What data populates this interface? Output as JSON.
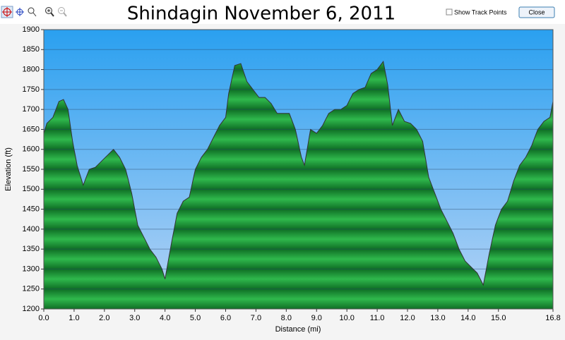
{
  "ui": {
    "show_track_points": "Show Track Points",
    "close": "Close"
  },
  "chart_data": {
    "type": "area",
    "title": "Shindagin November 6, 2011",
    "x_label": "Distance (mi)",
    "y_label": "Elevation (ft)",
    "x": [
      0.0,
      0.1,
      0.3,
      0.5,
      0.65,
      0.8,
      0.95,
      1.1,
      1.3,
      1.5,
      1.7,
      1.9,
      2.1,
      2.3,
      2.5,
      2.7,
      2.9,
      3.1,
      3.3,
      3.5,
      3.7,
      3.9,
      4.0,
      4.2,
      4.4,
      4.6,
      4.8,
      5.0,
      5.2,
      5.4,
      5.6,
      5.8,
      6.0,
      6.1,
      6.3,
      6.5,
      6.7,
      6.9,
      7.1,
      7.3,
      7.5,
      7.7,
      7.9,
      8.1,
      8.3,
      8.5,
      8.6,
      8.8,
      9.0,
      9.2,
      9.4,
      9.6,
      9.8,
      10.0,
      10.2,
      10.4,
      10.6,
      10.8,
      11.0,
      11.2,
      11.35,
      11.5,
      11.7,
      11.9,
      12.1,
      12.3,
      12.5,
      12.7,
      12.9,
      13.1,
      13.3,
      13.5,
      13.7,
      13.9,
      14.1,
      14.3,
      14.5,
      14.7,
      14.9,
      15.1,
      15.3,
      15.5,
      15.7,
      15.9,
      16.1,
      16.3,
      16.5,
      16.7,
      16.8
    ],
    "values": [
      1640,
      1665,
      1680,
      1720,
      1725,
      1700,
      1620,
      1560,
      1510,
      1550,
      1555,
      1570,
      1585,
      1600,
      1580,
      1550,
      1490,
      1410,
      1380,
      1350,
      1330,
      1300,
      1275,
      1360,
      1440,
      1470,
      1480,
      1550,
      1580,
      1600,
      1630,
      1660,
      1680,
      1740,
      1810,
      1815,
      1770,
      1750,
      1730,
      1730,
      1715,
      1690,
      1690,
      1690,
      1650,
      1580,
      1560,
      1650,
      1640,
      1660,
      1690,
      1700,
      1700,
      1710,
      1740,
      1750,
      1755,
      1790,
      1800,
      1820,
      1760,
      1660,
      1700,
      1670,
      1665,
      1650,
      1620,
      1530,
      1490,
      1450,
      1420,
      1390,
      1350,
      1320,
      1305,
      1290,
      1260,
      1340,
      1410,
      1450,
      1470,
      1520,
      1560,
      1580,
      1610,
      1650,
      1670,
      1680,
      1720
    ],
    "xlim": [
      0,
      16.8
    ],
    "xticks": [
      {
        "value": 0,
        "label": "0.0"
      },
      {
        "value": 1,
        "label": "1.0"
      },
      {
        "value": 2,
        "label": "2.0"
      },
      {
        "value": 3,
        "label": "3.0"
      },
      {
        "value": 4,
        "label": "4.0"
      },
      {
        "value": 5,
        "label": "5.0"
      },
      {
        "value": 6,
        "label": "6.0"
      },
      {
        "value": 7,
        "label": "7.0"
      },
      {
        "value": 8,
        "label": "8.0"
      },
      {
        "value": 9,
        "label": "9.0"
      },
      {
        "value": 10,
        "label": "10.0"
      },
      {
        "value": 11,
        "label": "11.0"
      },
      {
        "value": 12,
        "label": "12.0"
      },
      {
        "value": 13,
        "label": "13.0"
      },
      {
        "value": 14,
        "label": "14.0"
      },
      {
        "value": 15,
        "label": "15.0"
      },
      16.8
    ],
    "ylim": [
      1200,
      1900
    ],
    "yticks": [
      1200,
      1250,
      1300,
      1350,
      1400,
      1450,
      1500,
      1550,
      1600,
      1650,
      1700,
      1750,
      1800,
      1850,
      1900
    ],
    "grid": true,
    "color": "#1f9a3a"
  }
}
